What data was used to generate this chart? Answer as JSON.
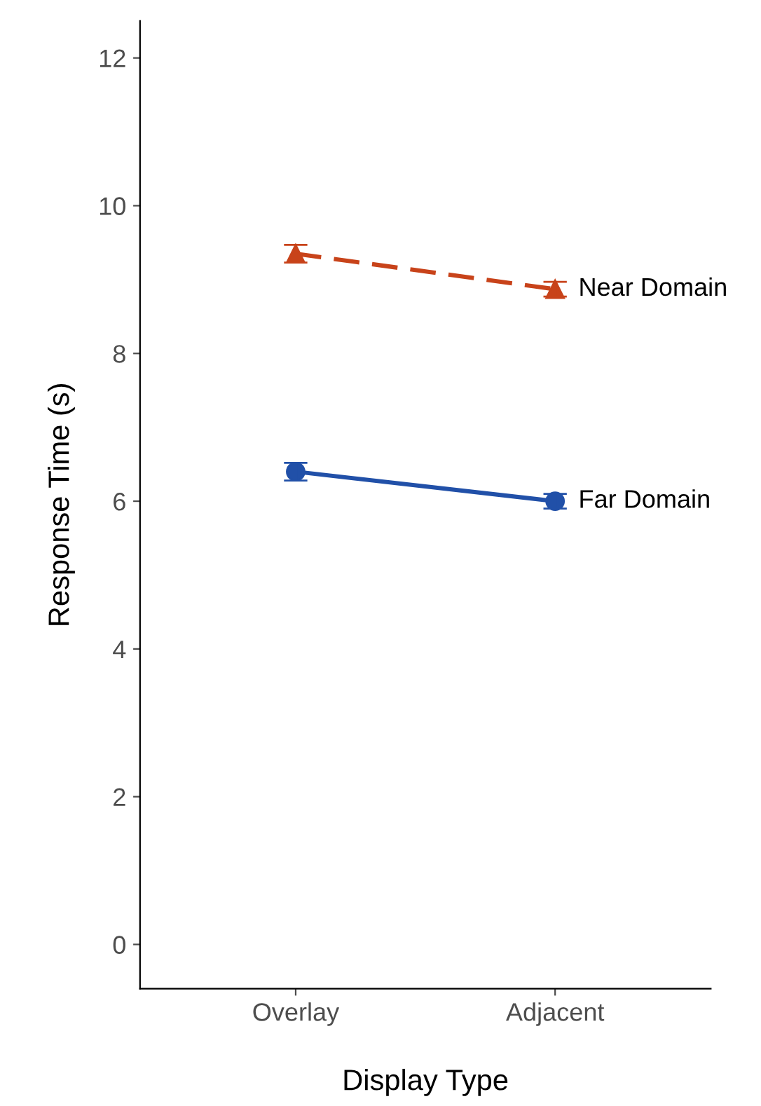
{
  "chart_data": {
    "type": "line",
    "xlabel": "Display Type",
    "ylabel": "Response Time (s)",
    "categories": [
      "Overlay",
      "Adjacent"
    ],
    "series": [
      {
        "name": "Near Domain",
        "color": "#c8431a",
        "values": [
          9.35,
          8.87
        ],
        "errors": [
          0.12,
          0.1
        ],
        "marker": "triangle",
        "line_style": "dashed"
      },
      {
        "name": "Far Domain",
        "color": "#2150a8",
        "values": [
          6.4,
          6.0
        ],
        "errors": [
          0.12,
          0.1
        ],
        "marker": "circle",
        "line_style": "solid"
      }
    ],
    "ylim": [
      -0.6,
      12.5
    ],
    "yticks": [
      0,
      2,
      4,
      6,
      8,
      10,
      12
    ],
    "grid": false,
    "legend": false
  }
}
